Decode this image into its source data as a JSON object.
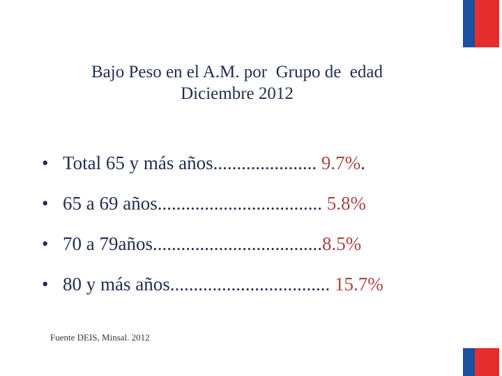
{
  "colors": {
    "flag_blue": "#1c4fa0",
    "flag_red": "#e52d2d",
    "text": "#1f2d4f",
    "value": "#a94442"
  },
  "title": {
    "line1": "Bajo Peso en el A.M. por  Grupo de  edad",
    "line2": "Diciembre 2012"
  },
  "bullet_symbol": "•",
  "items": [
    {
      "label": "Total 65 y más años......................",
      "value": " 9.7%",
      "suffix": "."
    },
    {
      "label": "65 a 69 años...................................",
      "value": " 5.8%",
      "suffix": ""
    },
    {
      "label": "70 a 79años....................................",
      "value": "8.5%",
      "suffix": ""
    },
    {
      "label": "80 y más años..................................",
      "value": " 15.7%",
      "suffix": ""
    }
  ],
  "source": "Fuente DEIS, Minsal. 2012"
}
